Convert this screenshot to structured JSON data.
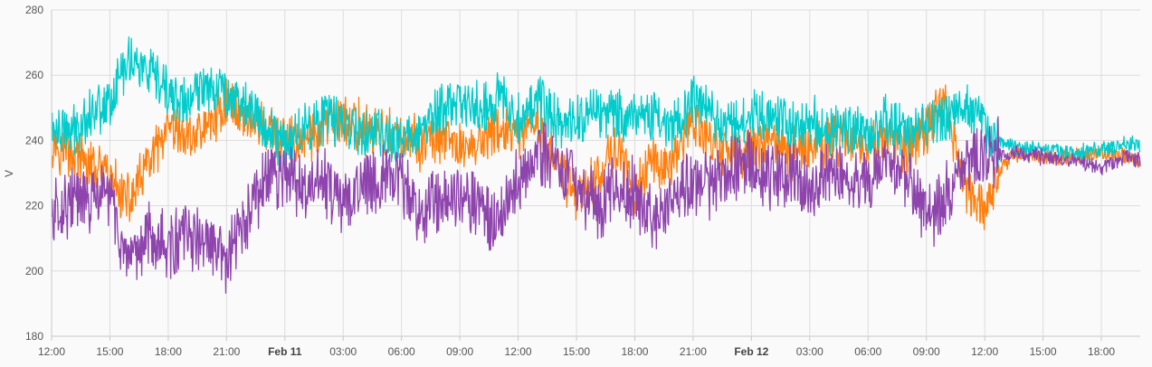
{
  "chart_data": {
    "type": "line",
    "title": "",
    "xlabel": "",
    "ylabel": "V",
    "ylim": [
      180,
      280
    ],
    "y_ticks": [
      180,
      200,
      220,
      240,
      260,
      280
    ],
    "xlim_hours": [
      0,
      56
    ],
    "x_ticks": [
      {
        "hour": 0,
        "label": "12:00",
        "bold": false
      },
      {
        "hour": 3,
        "label": "15:00",
        "bold": false
      },
      {
        "hour": 6,
        "label": "18:00",
        "bold": false
      },
      {
        "hour": 9,
        "label": "21:00",
        "bold": false
      },
      {
        "hour": 12,
        "label": "Feb 11",
        "bold": true
      },
      {
        "hour": 15,
        "label": "03:00",
        "bold": false
      },
      {
        "hour": 18,
        "label": "06:00",
        "bold": false
      },
      {
        "hour": 21,
        "label": "09:00",
        "bold": false
      },
      {
        "hour": 24,
        "label": "12:00",
        "bold": false
      },
      {
        "hour": 27,
        "label": "15:00",
        "bold": false
      },
      {
        "hour": 30,
        "label": "18:00",
        "bold": false
      },
      {
        "hour": 33,
        "label": "21:00",
        "bold": false
      },
      {
        "hour": 36,
        "label": "Feb 12",
        "bold": true
      },
      {
        "hour": 39,
        "label": "03:00",
        "bold": false
      },
      {
        "hour": 42,
        "label": "06:00",
        "bold": false
      },
      {
        "hour": 45,
        "label": "09:00",
        "bold": false
      },
      {
        "hour": 48,
        "label": "12:00",
        "bold": false
      },
      {
        "hour": 51,
        "label": "15:00",
        "bold": false
      },
      {
        "hour": 54,
        "label": "18:00",
        "bold": false
      }
    ],
    "grid": true,
    "legend": "none",
    "series": [
      {
        "color": "#ff7f0e",
        "x": [
          0,
          1,
          2,
          3,
          4,
          5,
          6,
          7,
          8,
          9,
          10,
          11,
          12,
          13,
          14,
          15,
          16,
          17,
          18,
          19,
          20,
          21,
          22,
          23,
          24,
          25,
          26,
          27,
          28,
          29,
          30,
          31,
          32,
          33,
          34,
          35,
          36,
          37,
          38,
          39,
          40,
          41,
          42,
          43,
          44,
          45,
          46,
          47,
          48,
          48.7,
          49.5,
          51,
          52.5,
          54,
          55.5,
          56
        ],
        "y": [
          240,
          236,
          232,
          228,
          221,
          233,
          242,
          241,
          244,
          252,
          248,
          244,
          239,
          240,
          244,
          246,
          244,
          242,
          240,
          239,
          240,
          238,
          239,
          244,
          240,
          245,
          232,
          224,
          228,
          238,
          224,
          234,
          233,
          246,
          240,
          236,
          237,
          241,
          236,
          239,
          240,
          241,
          238,
          240,
          237,
          244,
          252,
          225,
          219,
          230,
          236,
          235,
          235,
          236,
          235,
          234
        ]
      },
      {
        "color": "#00cccc",
        "x": [
          0,
          1,
          2,
          3,
          4,
          5,
          6,
          7,
          8,
          9,
          10,
          11,
          12,
          13,
          14,
          15,
          16,
          17,
          18,
          19,
          20,
          21,
          22,
          23,
          24,
          25,
          26,
          27,
          28,
          29,
          30,
          31,
          32,
          33,
          34,
          35,
          36,
          37,
          38,
          39,
          40,
          41,
          42,
          43,
          44,
          45,
          46,
          47,
          48,
          48.7,
          49.5,
          51,
          52.5,
          54,
          55.5,
          56
        ],
        "y": [
          244,
          242,
          249,
          252,
          266,
          260,
          254,
          251,
          258,
          255,
          251,
          244,
          239,
          244,
          247,
          246,
          243,
          241,
          240,
          244,
          249,
          252,
          250,
          253,
          248,
          252,
          246,
          246,
          250,
          247,
          249,
          247,
          244,
          252,
          247,
          246,
          247,
          248,
          245,
          246,
          243,
          244,
          242,
          246,
          241,
          246,
          248,
          251,
          244,
          239,
          238,
          237,
          236,
          237,
          239,
          238
        ]
      },
      {
        "color": "#8e44ad",
        "x": [
          0,
          1,
          2,
          3,
          4,
          5,
          6,
          7,
          8,
          9,
          10,
          11,
          12,
          13,
          14,
          15,
          16,
          17,
          18,
          19,
          20,
          21,
          22,
          23,
          24,
          25,
          26,
          27,
          28,
          29,
          30,
          31,
          32,
          33,
          34,
          35,
          36,
          37,
          38,
          39,
          40,
          41,
          42,
          43,
          44,
          45,
          46,
          47,
          48,
          48.7,
          49.5,
          51,
          52.5,
          54,
          55.5,
          56
        ],
        "y": [
          217,
          222,
          221,
          224,
          198,
          213,
          207,
          211,
          208,
          203,
          215,
          228,
          230,
          224,
          228,
          219,
          228,
          229,
          227,
          218,
          222,
          225,
          220,
          215,
          228,
          237,
          232,
          228,
          219,
          225,
          224,
          215,
          222,
          227,
          227,
          232,
          233,
          229,
          231,
          226,
          230,
          228,
          229,
          232,
          229,
          216,
          222,
          233,
          236,
          236,
          236,
          235,
          234,
          232,
          235,
          234
        ]
      }
    ]
  }
}
